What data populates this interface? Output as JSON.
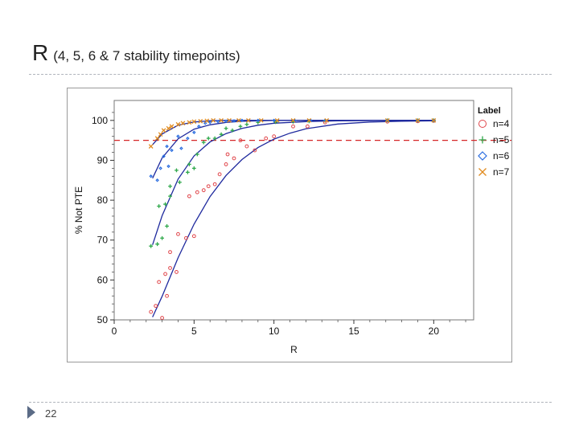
{
  "slide": {
    "title_main": "R",
    "title_sub": "(4, 5, 6 & 7 stability timepoints)",
    "page_number": "22"
  },
  "chart_data": {
    "type": "scatter",
    "xlabel": "R",
    "ylabel": "% Not PTE",
    "xlim": [
      0,
      22.5
    ],
    "ylim": [
      50,
      105
    ],
    "xticks": [
      0,
      5,
      10,
      15,
      20
    ],
    "yticks": [
      50,
      60,
      70,
      80,
      90,
      100
    ],
    "grid": false,
    "reference_line": {
      "y": 95,
      "style": "dashed",
      "color": "#d62728"
    },
    "fit_color": "#1f2a9e",
    "legend": {
      "title": "Label",
      "placement": "right"
    },
    "series": [
      {
        "name": "n=4",
        "marker": "circle",
        "color": "#e0454a",
        "points": [
          [
            2.3,
            52
          ],
          [
            2.6,
            53.5
          ],
          [
            2.8,
            59.5
          ],
          [
            3.0,
            50.5
          ],
          [
            3.2,
            61.5
          ],
          [
            3.3,
            56
          ],
          [
            3.5,
            63
          ],
          [
            3.5,
            67
          ],
          [
            3.9,
            62
          ],
          [
            4.0,
            71.5
          ],
          [
            4.5,
            70.5
          ],
          [
            4.7,
            81
          ],
          [
            5.0,
            71
          ],
          [
            5.2,
            82
          ],
          [
            5.6,
            82.5
          ],
          [
            5.9,
            83.5
          ],
          [
            6.3,
            84
          ],
          [
            6.6,
            86.5
          ],
          [
            7.0,
            89
          ],
          [
            7.1,
            91.5
          ],
          [
            7.5,
            90.5
          ],
          [
            7.9,
            95
          ],
          [
            8.3,
            93.5
          ],
          [
            8.8,
            92.5
          ],
          [
            9.5,
            95.5
          ],
          [
            10.0,
            96
          ],
          [
            11.2,
            98.5
          ],
          [
            12.1,
            98.5
          ],
          [
            13.2,
            99.5
          ],
          [
            17.1,
            99.7
          ],
          [
            19.0,
            99.8
          ],
          [
            20.0,
            99.9
          ]
        ],
        "fit": [
          [
            2.4,
            50.7
          ],
          [
            3.0,
            55.9
          ],
          [
            4.0,
            65.6
          ],
          [
            5.0,
            74.0
          ],
          [
            6.0,
            80.9
          ],
          [
            7.0,
            86.2
          ],
          [
            8.0,
            90.2
          ],
          [
            9.0,
            93.2
          ],
          [
            10.0,
            95.3
          ],
          [
            11.0,
            96.8
          ],
          [
            12.0,
            97.9
          ],
          [
            14.0,
            99.1
          ],
          [
            16.0,
            99.6
          ],
          [
            18.0,
            99.8
          ],
          [
            20.0,
            99.9
          ]
        ]
      },
      {
        "name": "n=5",
        "marker": "plus",
        "color": "#2ea84a",
        "points": [
          [
            2.3,
            68.5
          ],
          [
            2.7,
            69
          ],
          [
            2.8,
            78.5
          ],
          [
            3.0,
            70.5
          ],
          [
            3.2,
            79
          ],
          [
            3.3,
            73.5
          ],
          [
            3.5,
            83.5
          ],
          [
            3.5,
            81
          ],
          [
            3.9,
            87.5
          ],
          [
            4.1,
            84.5
          ],
          [
            4.6,
            87
          ],
          [
            4.7,
            89
          ],
          [
            5.0,
            88
          ],
          [
            5.2,
            91.5
          ],
          [
            5.6,
            94.5
          ],
          [
            5.9,
            95.5
          ],
          [
            6.3,
            95.5
          ],
          [
            6.7,
            96.5
          ],
          [
            7.0,
            98
          ],
          [
            7.4,
            97.5
          ],
          [
            7.9,
            98.5
          ],
          [
            8.3,
            99
          ],
          [
            9.0,
            99.5
          ],
          [
            10.1,
            99.6
          ],
          [
            11.2,
            99.7
          ],
          [
            12.2,
            99.8
          ],
          [
            13.2,
            99.9
          ],
          [
            17.1,
            100
          ],
          [
            19.0,
            100
          ],
          [
            20.0,
            100
          ]
        ],
        "fit": [
          [
            2.4,
            68.8
          ],
          [
            3.0,
            76.1
          ],
          [
            4.0,
            85.3
          ],
          [
            5.0,
            91.1
          ],
          [
            6.0,
            94.6
          ],
          [
            7.0,
            96.7
          ],
          [
            8.0,
            98.0
          ],
          [
            9.0,
            98.8
          ],
          [
            10.0,
            99.3
          ],
          [
            12.0,
            99.7
          ],
          [
            14.0,
            99.9
          ],
          [
            17.0,
            100
          ],
          [
            20.0,
            100
          ]
        ]
      },
      {
        "name": "n=6",
        "marker": "diamond",
        "color": "#2a6de0",
        "points": [
          [
            2.3,
            86
          ],
          [
            2.7,
            85
          ],
          [
            2.9,
            88
          ],
          [
            3.1,
            91
          ],
          [
            3.3,
            93.5
          ],
          [
            3.4,
            88.5
          ],
          [
            3.6,
            92.5
          ],
          [
            4.0,
            96
          ],
          [
            4.2,
            93
          ],
          [
            4.6,
            95.5
          ],
          [
            5.0,
            97
          ],
          [
            5.3,
            98.5
          ],
          [
            5.7,
            99.3
          ],
          [
            6.0,
            99.5
          ],
          [
            6.5,
            99.7
          ],
          [
            7.0,
            99.8
          ],
          [
            7.5,
            99.9
          ],
          [
            8.0,
            100
          ],
          [
            9.0,
            100
          ],
          [
            10.0,
            100
          ],
          [
            11.3,
            100
          ],
          [
            12.3,
            100
          ],
          [
            13.2,
            100
          ],
          [
            17.1,
            100
          ],
          [
            19.0,
            100
          ],
          [
            20.0,
            100
          ]
        ],
        "fit": [
          [
            2.4,
            85.5
          ],
          [
            3.0,
            90.6
          ],
          [
            4.0,
            95.4
          ],
          [
            5.0,
            97.8
          ],
          [
            6.0,
            98.9
          ],
          [
            7.0,
            99.5
          ],
          [
            8.0,
            99.8
          ],
          [
            10.0,
            100
          ],
          [
            13.0,
            100
          ],
          [
            16.0,
            100
          ],
          [
            20.0,
            100
          ]
        ]
      },
      {
        "name": "n=7",
        "marker": "x",
        "color": "#e08a1e",
        "points": [
          [
            2.3,
            93.5
          ],
          [
            2.7,
            95.5
          ],
          [
            2.9,
            96.5
          ],
          [
            3.1,
            97.5
          ],
          [
            3.4,
            98
          ],
          [
            3.6,
            98.5
          ],
          [
            4.0,
            99
          ],
          [
            4.3,
            99.3
          ],
          [
            4.7,
            99.5
          ],
          [
            5.0,
            99.7
          ],
          [
            5.4,
            99.8
          ],
          [
            5.8,
            99.9
          ],
          [
            6.2,
            100
          ],
          [
            6.7,
            100
          ],
          [
            7.2,
            100
          ],
          [
            7.8,
            100
          ],
          [
            8.4,
            100
          ],
          [
            9.2,
            100
          ],
          [
            10.2,
            100
          ],
          [
            11.2,
            100
          ],
          [
            12.2,
            100
          ],
          [
            13.3,
            100
          ],
          [
            17.1,
            100
          ],
          [
            19.0,
            100
          ],
          [
            20.0,
            100
          ]
        ],
        "fit": [
          [
            2.4,
            93.9
          ],
          [
            3.0,
            96.6
          ],
          [
            4.0,
            98.8
          ],
          [
            5.0,
            99.6
          ],
          [
            6.0,
            99.9
          ],
          [
            7.0,
            100
          ],
          [
            10.0,
            100
          ],
          [
            14.0,
            100
          ],
          [
            20.0,
            100
          ]
        ]
      }
    ]
  }
}
